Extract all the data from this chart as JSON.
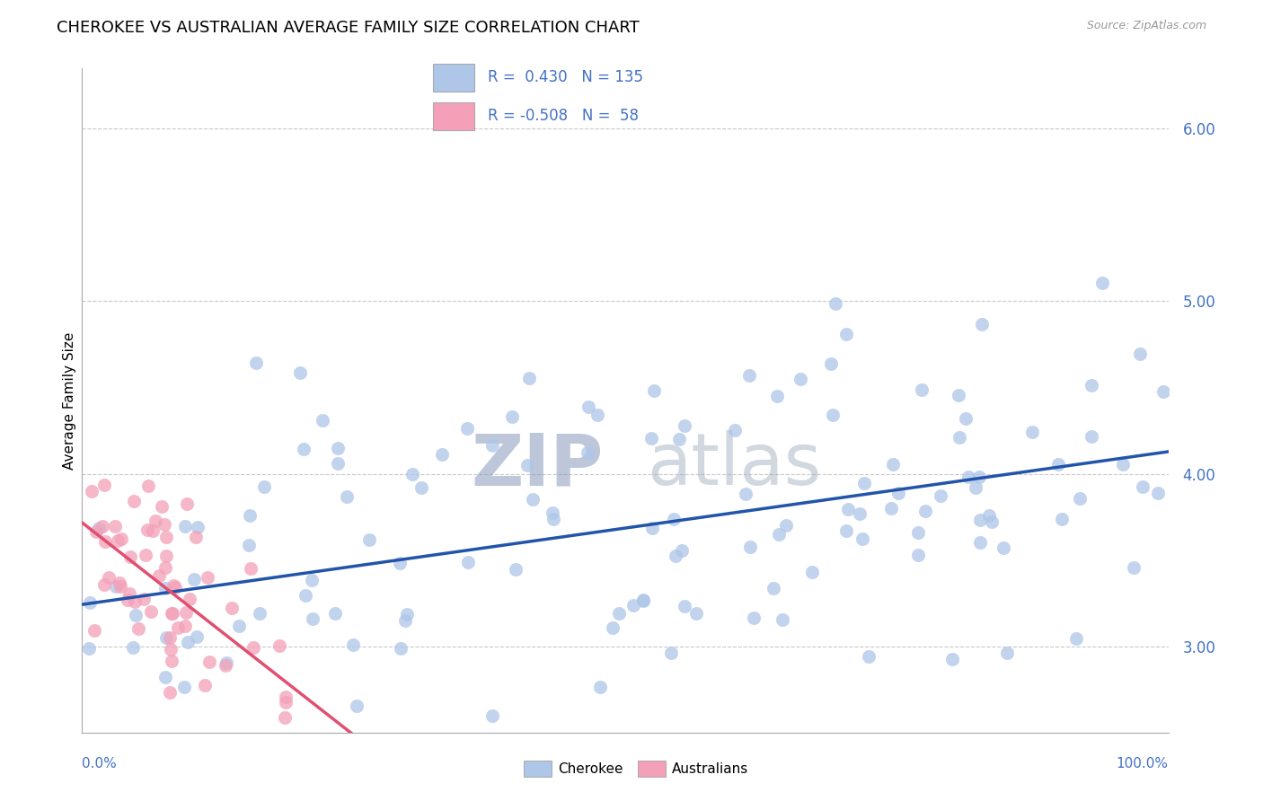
{
  "title": "CHEROKEE VS AUSTRALIAN AVERAGE FAMILY SIZE CORRELATION CHART",
  "source": "Source: ZipAtlas.com",
  "ylabel": "Average Family Size",
  "y_ticks": [
    3.0,
    4.0,
    5.0,
    6.0
  ],
  "x_range": [
    0,
    100
  ],
  "y_range": [
    2.5,
    6.35
  ],
  "cherokee_color": "#aec6e8",
  "australians_color": "#f4a0b8",
  "cherokee_line_color": "#2255aa",
  "australians_line_color": "#e05070",
  "cherokee_R": 0.43,
  "cherokee_N": 135,
  "australians_R": -0.508,
  "australians_N": 58,
  "background_color": "#ffffff",
  "grid_color": "#bbbbbb",
  "watermark_color": "#dde5f0",
  "title_fontsize": 13,
  "axis_label_color": "#4472c4",
  "legend_R_color": "#4472c4"
}
